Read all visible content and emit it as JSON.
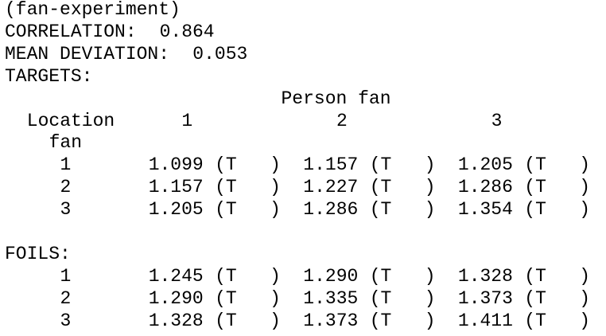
{
  "title": "(fan-experiment)",
  "correlation": {
    "label": "CORRELATION:",
    "value": "0.864"
  },
  "mean_deviation": {
    "label": "MEAN DEVIATION:",
    "value": "0.053"
  },
  "targets": {
    "label": "TARGETS:",
    "column_header": "Person fan",
    "row_header": [
      "Location",
      "fan"
    ],
    "columns": [
      "1",
      "2",
      "3"
    ],
    "rows": [
      {
        "label": "1",
        "cells": [
          {
            "value": "1.099",
            "tag": "(T   )"
          },
          {
            "value": "1.157",
            "tag": "(T   )"
          },
          {
            "value": "1.205",
            "tag": "(T   )"
          }
        ]
      },
      {
        "label": "2",
        "cells": [
          {
            "value": "1.157",
            "tag": "(T   )"
          },
          {
            "value": "1.227",
            "tag": "(T   )"
          },
          {
            "value": "1.286",
            "tag": "(T   )"
          }
        ]
      },
      {
        "label": "3",
        "cells": [
          {
            "value": "1.205",
            "tag": "(T   )"
          },
          {
            "value": "1.286",
            "tag": "(T   )"
          },
          {
            "value": "1.354",
            "tag": "(T   )"
          }
        ]
      }
    ]
  },
  "foils": {
    "label": "FOILS:",
    "rows": [
      {
        "label": "1",
        "cells": [
          {
            "value": "1.245",
            "tag": "(T   )"
          },
          {
            "value": "1.290",
            "tag": "(T   )"
          },
          {
            "value": "1.328",
            "tag": "(T   )"
          }
        ]
      },
      {
        "label": "2",
        "cells": [
          {
            "value": "1.290",
            "tag": "(T   )"
          },
          {
            "value": "1.335",
            "tag": "(T   )"
          },
          {
            "value": "1.373",
            "tag": "(T   )"
          }
        ]
      },
      {
        "label": "3",
        "cells": [
          {
            "value": "1.328",
            "tag": "(T   )"
          },
          {
            "value": "1.373",
            "tag": "(T   )"
          },
          {
            "value": "1.411",
            "tag": "(T   )"
          }
        ]
      }
    ]
  }
}
